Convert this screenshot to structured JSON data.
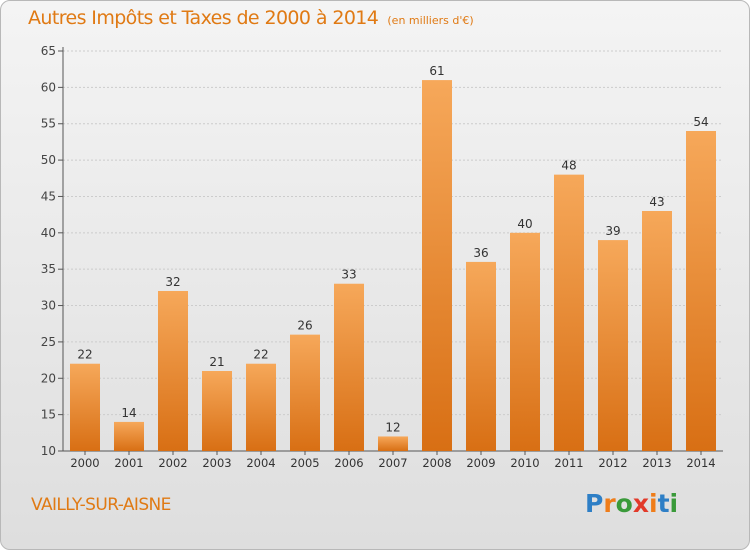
{
  "title": "Autres Impôts et Taxes de 2000 à 2014",
  "unit": "(en milliers d'€)",
  "town": "VAILLY-SUR-AISNE",
  "logo": {
    "text": "Proxiti",
    "letters": [
      "P",
      "r",
      "o",
      "x",
      "i",
      "t",
      "i"
    ],
    "colors": [
      "#2e7fc6",
      "#ef7d1a",
      "#3a9a3a",
      "#e23a2a",
      "#ef7d1a",
      "#2e7fc6",
      "#3a9a3a"
    ]
  },
  "colors": {
    "bar_top": "#f6a85a",
    "bar_bottom": "#d86f14",
    "accent": "#e07a14",
    "grid": "#cccccc"
  },
  "chart_data": {
    "type": "bar",
    "categories": [
      "2000",
      "2001",
      "2002",
      "2003",
      "2004",
      "2005",
      "2006",
      "2007",
      "2008",
      "2009",
      "2010",
      "2011",
      "2012",
      "2013",
      "2014"
    ],
    "values": [
      22,
      14,
      32,
      21,
      22,
      26,
      33,
      12,
      61,
      36,
      40,
      48,
      39,
      43,
      54
    ],
    "ylim": [
      10,
      65
    ],
    "yticks": [
      10,
      15,
      20,
      25,
      30,
      35,
      40,
      45,
      50,
      55,
      60,
      65
    ],
    "grid": true,
    "title": "Autres Impôts et Taxes de 2000 à 2014",
    "xlabel": "",
    "ylabel": ""
  }
}
